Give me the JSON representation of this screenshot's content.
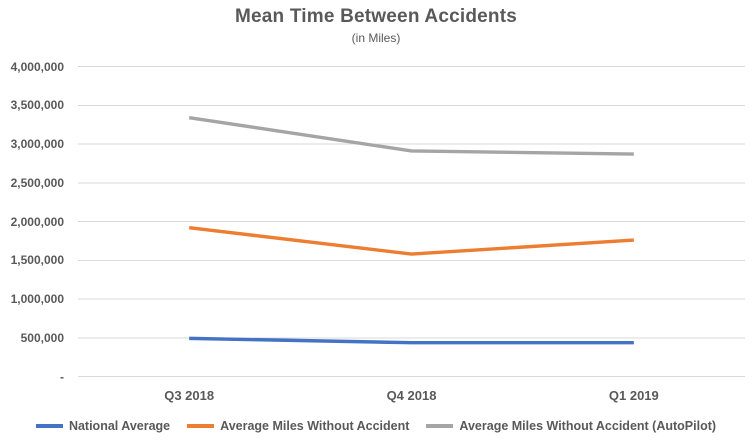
{
  "chart_data": {
    "type": "line",
    "title": "Mean Time Between Accidents",
    "subtitle": "(in Miles)",
    "categories": [
      "Q3 2018",
      "Q4 2018",
      "Q1 2019"
    ],
    "series": [
      {
        "name": "National Average",
        "color": "#4472C4",
        "values": [
          492000,
          436000,
          436000
        ]
      },
      {
        "name": "Average Miles Without Accident",
        "color": "#ED7D31",
        "values": [
          1920000,
          1580000,
          1760000
        ]
      },
      {
        "name": "Average Miles Without Accident (AutoPilot)",
        "color": "#A5A5A5",
        "values": [
          3340000,
          2910000,
          2870000
        ]
      }
    ],
    "ylim": [
      0,
      4000000
    ],
    "y_tick_step": 500000,
    "y_tick_labels": [
      "-",
      "500,000",
      "1,000,000",
      "1,500,000",
      "2,000,000",
      "2,500,000",
      "3,000,000",
      "3,500,000",
      "4,000,000"
    ],
    "grid": true,
    "gridline_color": "#D9D9D9",
    "text_color": "#595959",
    "legend_position": "bottom"
  }
}
